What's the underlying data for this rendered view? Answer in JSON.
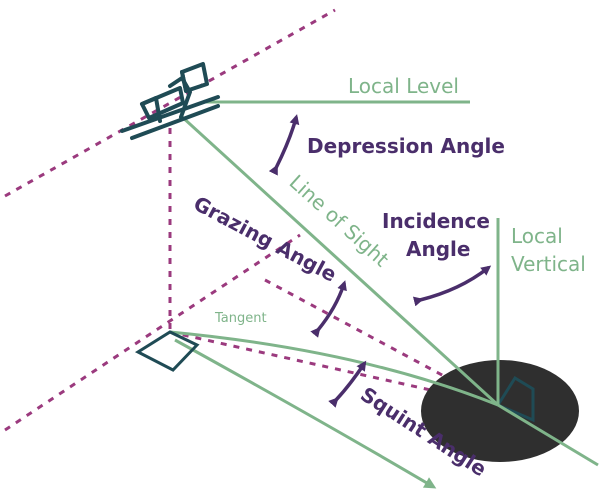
{
  "labels": {
    "local_level": "Local Level",
    "depression_angle": "Depression Angle",
    "line_of_sight": "Line of Sight",
    "incidence_line1": "Incidence",
    "incidence_line2": "Angle",
    "local_vertical_line1": "Local",
    "local_vertical_line2": "Vertical",
    "grazing_angle": "Grazing Angle",
    "tangent": "Tangent",
    "squint_angle": "Squint Angle"
  },
  "colors": {
    "green": "#7fb48a",
    "purple_dashed": "#9b3a7e",
    "purple_text": "#4a2e6b",
    "teal_dark": "#1f4b55",
    "footprint": "#2f2f2f"
  },
  "icons": {
    "satellite": "satellite-icon",
    "ground_square": "ground-square-icon",
    "target_square": "target-square-icon"
  }
}
